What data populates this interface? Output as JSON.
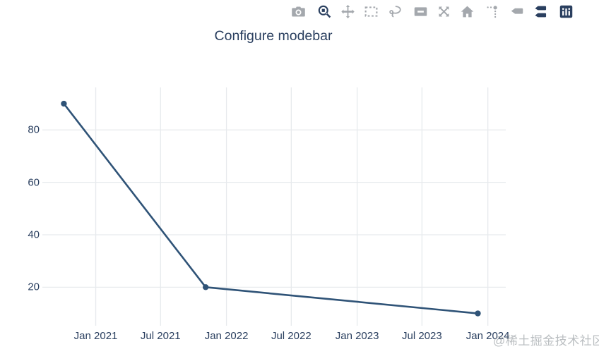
{
  "chart_data": {
    "type": "line",
    "title": "Configure modebar",
    "x": [
      "2020-10-04",
      "2021-11-04",
      "2023-12-04"
    ],
    "y": [
      90,
      20,
      10
    ],
    "x_ticks": [
      {
        "date": "2021-01-01",
        "label": "Jan 2021"
      },
      {
        "date": "2021-07-01",
        "label": "Jul 2021"
      },
      {
        "date": "2022-01-01",
        "label": "Jan 2022"
      },
      {
        "date": "2022-07-01",
        "label": "Jul 2022"
      },
      {
        "date": "2023-01-01",
        "label": "Jan 2023"
      },
      {
        "date": "2023-07-01",
        "label": "Jul 2023"
      },
      {
        "date": "2024-01-01",
        "label": "Jan 2024"
      }
    ],
    "y_ticks": [
      20,
      40,
      60,
      80
    ],
    "x_range": [
      "2020-08-05",
      "2024-02-20"
    ],
    "y_range": [
      5.3,
      96.2
    ],
    "grid": true,
    "legend": false,
    "line_color": "#2f5377",
    "marker_color": "#2f5377",
    "grid_color": "#e7eaed",
    "font_color": "#2a3f5f",
    "background": "#ffffff"
  },
  "modebar": {
    "active_color": "#2a3f5f",
    "inactive_color": "#a4a8ad",
    "groups": [
      [
        {
          "icon": "camera-icon",
          "active": false
        }
      ],
      [
        {
          "icon": "zoom-icon",
          "active": true
        },
        {
          "icon": "pan-icon",
          "active": false
        },
        {
          "icon": "box-select-icon",
          "active": false
        },
        {
          "icon": "lasso-select-icon",
          "active": false
        }
      ],
      [
        {
          "icon": "zoom-out-icon",
          "active": false
        },
        {
          "icon": "autoscale-icon",
          "active": false
        },
        {
          "icon": "reset-axes-home-icon",
          "active": false
        }
      ],
      [
        {
          "icon": "toggle-spikelines-icon",
          "active": false
        },
        {
          "icon": "hover-closest-icon",
          "active": false
        },
        {
          "icon": "hover-compare-icon",
          "active": true
        }
      ],
      [
        {
          "icon": "plotly-logo-icon",
          "active": true
        }
      ]
    ]
  },
  "watermark": {
    "text": "@稀土掘金技术社区",
    "color": "#82888e"
  }
}
